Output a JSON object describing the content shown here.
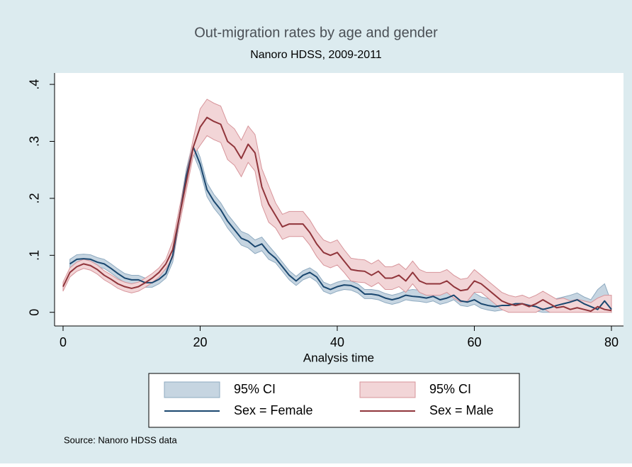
{
  "chart_data": {
    "type": "line",
    "title": "Out-migration rates by age and gender",
    "subtitle": "Nanoro HDSS, 2009-2011",
    "x_label": "Analysis time",
    "note": "Source:  Nanoro HDSS data",
    "x": [
      0,
      1,
      2,
      3,
      4,
      5,
      6,
      7,
      8,
      9,
      10,
      11,
      12,
      13,
      14,
      15,
      16,
      17,
      18,
      19,
      20,
      21,
      22,
      23,
      24,
      25,
      26,
      27,
      28,
      29,
      30,
      31,
      32,
      33,
      34,
      35,
      36,
      37,
      38,
      39,
      40,
      41,
      42,
      43,
      44,
      45,
      46,
      47,
      48,
      49,
      50,
      51,
      52,
      53,
      54,
      55,
      56,
      57,
      58,
      59,
      60,
      61,
      62,
      63,
      64,
      65,
      66,
      67,
      68,
      69,
      70,
      71,
      72,
      73,
      74,
      75,
      76,
      77,
      78,
      79,
      80
    ],
    "xlim": [
      -1.24,
      81.76
    ],
    "xticks": [
      0,
      20,
      40,
      60,
      80
    ],
    "ylim": [
      -0.024,
      0.42
    ],
    "yticks": [
      0,
      {
        "value": 0.1,
        "label": ".1"
      },
      {
        "value": 0.2,
        "label": ".2"
      },
      {
        "value": 0.3,
        "label": ".3"
      },
      {
        "value": 0.4,
        "label": ".4"
      }
    ],
    "grid": false,
    "series": [
      {
        "name": "95% CI",
        "type": "area",
        "color": "#c6d5e1",
        "edge_color": "#8eaac0",
        "lower": [
          null,
          0.077,
          0.085,
          0.086,
          0.085,
          0.08,
          0.077,
          0.069,
          0.06,
          0.052,
          0.049,
          0.049,
          0.044,
          0.044,
          0.05,
          0.06,
          0.088,
          0.158,
          0.228,
          0.278,
          0.248,
          0.203,
          0.183,
          0.168,
          0.148,
          0.133,
          0.118,
          0.113,
          0.103,
          0.108,
          0.093,
          0.087,
          0.072,
          0.057,
          0.047,
          0.057,
          0.062,
          0.054,
          0.037,
          0.032,
          0.037,
          0.04,
          0.039,
          0.034,
          0.024,
          0.024,
          0.022,
          0.017,
          0.014,
          0.017,
          0.022,
          0.02,
          0.019,
          0.017,
          0.02,
          0.014,
          0.017,
          0.022,
          0.012,
          0.01,
          0.014,
          0.007,
          0.004,
          0.002,
          0.004,
          0.004,
          0.007,
          0.007,
          0.004,
          0.002,
          0,
          0,
          0.004,
          0.007,
          0.01,
          0.014,
          0.007,
          0.002,
          0,
          0.012,
          0
        ],
        "upper": [
          null,
          0.093,
          0.101,
          0.102,
          0.101,
          0.096,
          0.093,
          0.085,
          0.076,
          0.068,
          0.065,
          0.065,
          0.06,
          0.06,
          0.066,
          0.076,
          0.112,
          0.182,
          0.252,
          0.302,
          0.272,
          0.227,
          0.207,
          0.192,
          0.172,
          0.157,
          0.142,
          0.137,
          0.127,
          0.132,
          0.117,
          0.103,
          0.088,
          0.073,
          0.063,
          0.073,
          0.078,
          0.07,
          0.053,
          0.048,
          0.053,
          0.056,
          0.055,
          0.05,
          0.04,
          0.04,
          0.038,
          0.033,
          0.03,
          0.033,
          0.038,
          0.04,
          0.039,
          0.037,
          0.04,
          0.034,
          0.037,
          0.042,
          0.032,
          0.03,
          0.034,
          0.027,
          0.024,
          0.022,
          0.024,
          0.024,
          0.027,
          0.027,
          0.024,
          0.022,
          0.017,
          0.02,
          0.024,
          0.027,
          0.03,
          0.034,
          0.027,
          0.022,
          0.04,
          0.05,
          0.017
        ]
      },
      {
        "name": "95% CI",
        "type": "area",
        "color": "#f2d5d7",
        "edge_color": "#d7949a",
        "lower": [
          0.037,
          0.062,
          0.072,
          0.077,
          0.074,
          0.067,
          0.057,
          0.05,
          0.042,
          0.037,
          0.034,
          0.037,
          0.044,
          0.052,
          0.062,
          0.077,
          0.095,
          0.155,
          0.215,
          0.275,
          0.293,
          0.31,
          0.303,
          0.298,
          0.268,
          0.258,
          0.238,
          0.263,
          0.248,
          0.188,
          0.158,
          0.148,
          0.128,
          0.133,
          0.133,
          0.133,
          0.118,
          0.098,
          0.083,
          0.078,
          0.083,
          0.07,
          0.055,
          0.053,
          0.052,
          0.045,
          0.052,
          0.04,
          0.04,
          0.045,
          0.035,
          0.05,
          0.035,
          0.03,
          0.03,
          0.03,
          0.035,
          0.025,
          0.018,
          0.02,
          0.035,
          0.035,
          0.025,
          0.015,
          0.005,
          0,
          0,
          0,
          0,
          0,
          0.007,
          0,
          0,
          0,
          0,
          0,
          0,
          0,
          0,
          0,
          0
        ],
        "upper": [
          0.053,
          0.078,
          0.088,
          0.093,
          0.09,
          0.083,
          0.073,
          0.066,
          0.058,
          0.053,
          0.05,
          0.053,
          0.06,
          0.068,
          0.078,
          0.093,
          0.125,
          0.185,
          0.245,
          0.305,
          0.357,
          0.374,
          0.367,
          0.362,
          0.332,
          0.322,
          0.302,
          0.327,
          0.312,
          0.252,
          0.222,
          0.192,
          0.172,
          0.177,
          0.177,
          0.177,
          0.162,
          0.142,
          0.127,
          0.122,
          0.127,
          0.11,
          0.095,
          0.093,
          0.092,
          0.085,
          0.092,
          0.08,
          0.08,
          0.085,
          0.075,
          0.09,
          0.075,
          0.07,
          0.07,
          0.07,
          0.075,
          0.065,
          0.058,
          0.06,
          0.075,
          0.065,
          0.055,
          0.045,
          0.035,
          0.03,
          0.027,
          0.03,
          0.025,
          0.03,
          0.037,
          0.03,
          0.023,
          0.025,
          0.02,
          0.023,
          0.02,
          0.017,
          0.025,
          0.03,
          0.03
        ]
      },
      {
        "name": "Sex = Female",
        "type": "line",
        "color": "#1a476f",
        "values": [
          null,
          0.085,
          0.093,
          0.094,
          0.093,
          0.088,
          0.085,
          0.077,
          0.068,
          0.06,
          0.057,
          0.057,
          0.052,
          0.052,
          0.058,
          0.068,
          0.1,
          0.17,
          0.24,
          0.29,
          0.26,
          0.215,
          0.195,
          0.18,
          0.16,
          0.145,
          0.13,
          0.125,
          0.115,
          0.12,
          0.105,
          0.095,
          0.08,
          0.065,
          0.055,
          0.065,
          0.07,
          0.062,
          0.045,
          0.04,
          0.045,
          0.048,
          0.047,
          0.042,
          0.032,
          0.032,
          0.03,
          0.025,
          0.022,
          0.025,
          0.03,
          0.028,
          0.027,
          0.025,
          0.028,
          0.022,
          0.025,
          0.03,
          0.02,
          0.018,
          0.022,
          0.015,
          0.012,
          0.01,
          0.012,
          0.012,
          0.015,
          0.015,
          0.012,
          0.01,
          0.005,
          0.008,
          0.012,
          0.015,
          0.018,
          0.022,
          0.015,
          0.01,
          0.005,
          0.02,
          0.005
        ]
      },
      {
        "name": "Sex = Male",
        "type": "line",
        "color": "#90353b",
        "values": [
          0.045,
          0.07,
          0.08,
          0.085,
          0.082,
          0.075,
          0.065,
          0.058,
          0.05,
          0.045,
          0.042,
          0.045,
          0.052,
          0.06,
          0.07,
          0.085,
          0.11,
          0.17,
          0.23,
          0.29,
          0.325,
          0.342,
          0.335,
          0.33,
          0.3,
          0.29,
          0.27,
          0.295,
          0.28,
          0.22,
          0.19,
          0.17,
          0.15,
          0.155,
          0.155,
          0.155,
          0.14,
          0.12,
          0.105,
          0.1,
          0.105,
          0.09,
          0.075,
          0.073,
          0.072,
          0.065,
          0.072,
          0.06,
          0.06,
          0.065,
          0.055,
          0.07,
          0.055,
          0.05,
          0.05,
          0.05,
          0.055,
          0.045,
          0.038,
          0.04,
          0.055,
          0.05,
          0.04,
          0.03,
          0.02,
          0.015,
          0.012,
          0.015,
          0.01,
          0.015,
          0.022,
          0.015,
          0.008,
          0.01,
          0.005,
          0.008,
          0.005,
          0.002,
          0.01,
          0.005,
          0.003
        ]
      }
    ]
  }
}
